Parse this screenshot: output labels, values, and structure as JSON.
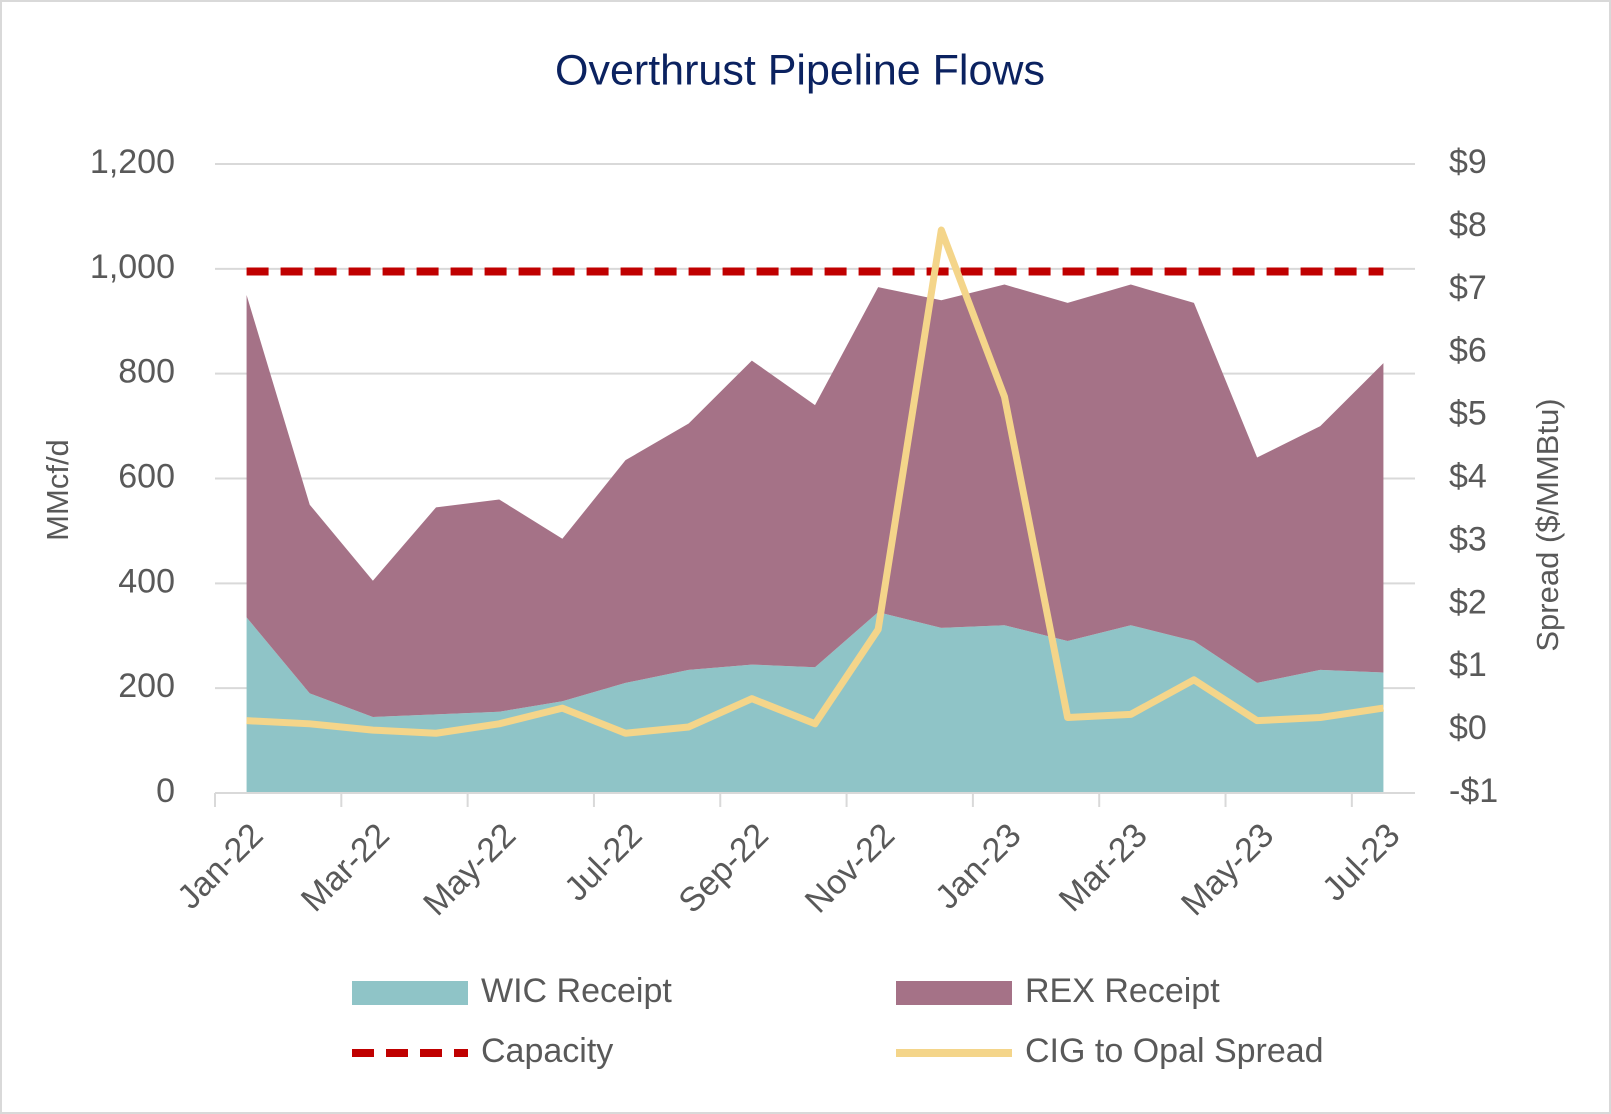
{
  "chart_data": {
    "type": "area",
    "stacked": true,
    "title": "Overthrust Pipeline Flows",
    "y_label": "MMcf/d",
    "y2_label": "Spread ($/MMBtu)",
    "categories": [
      "Jan-22",
      null,
      "Mar-22",
      null,
      "May-22",
      null,
      "Jul-22",
      null,
      "Sep-22",
      null,
      "Nov-22",
      null,
      "Jan-23",
      null,
      "Mar-23",
      null,
      "May-23",
      null,
      "Jul-23"
    ],
    "series": [
      {
        "name": "WIC Receipt",
        "type": "area",
        "color": "#8fc4c7",
        "values": [
          335,
          190,
          145,
          150,
          155,
          175,
          210,
          235,
          245,
          240,
          345,
          315,
          320,
          290,
          320,
          290,
          210,
          235,
          230
        ]
      },
      {
        "name": "REX Receipt",
        "type": "area",
        "color": "#a57287",
        "values": [
          615,
          360,
          260,
          395,
          405,
          310,
          425,
          470,
          580,
          500,
          620,
          625,
          650,
          645,
          650,
          645,
          430,
          465,
          590
        ]
      },
      {
        "name": "Capacity",
        "type": "line",
        "dashed": true,
        "color": "#c00000",
        "values": [
          995,
          995,
          995,
          995,
          995,
          995,
          995,
          995,
          995,
          995,
          995,
          995,
          995,
          995,
          995,
          995,
          995,
          995,
          995
        ]
      },
      {
        "name": "CIG to Opal Spread",
        "type": "line",
        "axis": "y2",
        "color": "#f4d58a",
        "values": [
          0.15,
          0.1,
          0,
          -0.05,
          0.1,
          0.35,
          -0.05,
          0.05,
          0.5,
          0.1,
          1.6,
          7.95,
          5.3,
          0.2,
          0.25,
          0.8,
          0.15,
          0.2,
          0.35
        ]
      }
    ],
    "ylim": [
      0,
      1200
    ],
    "yticks": [
      0,
      200,
      400,
      600,
      800,
      {
        "value": 1000,
        "label": "1,000"
      },
      {
        "value": 1200,
        "label": "1,200"
      }
    ],
    "y2lim": [
      -1,
      9
    ],
    "y2ticks": [
      {
        "value": -1,
        "label": "-$1"
      },
      {
        "value": 0,
        "label": "$0"
      },
      {
        "value": 1,
        "label": "$1"
      },
      {
        "value": 2,
        "label": "$2"
      },
      {
        "value": 3,
        "label": "$3"
      },
      {
        "value": 4,
        "label": "$4"
      },
      {
        "value": 5,
        "label": "$5"
      },
      {
        "value": 6,
        "label": "$6"
      },
      {
        "value": 7,
        "label": "$7"
      },
      {
        "value": 8,
        "label": "$8"
      },
      {
        "value": 9,
        "label": "$9"
      }
    ],
    "grid": true,
    "legend": "bottom"
  }
}
